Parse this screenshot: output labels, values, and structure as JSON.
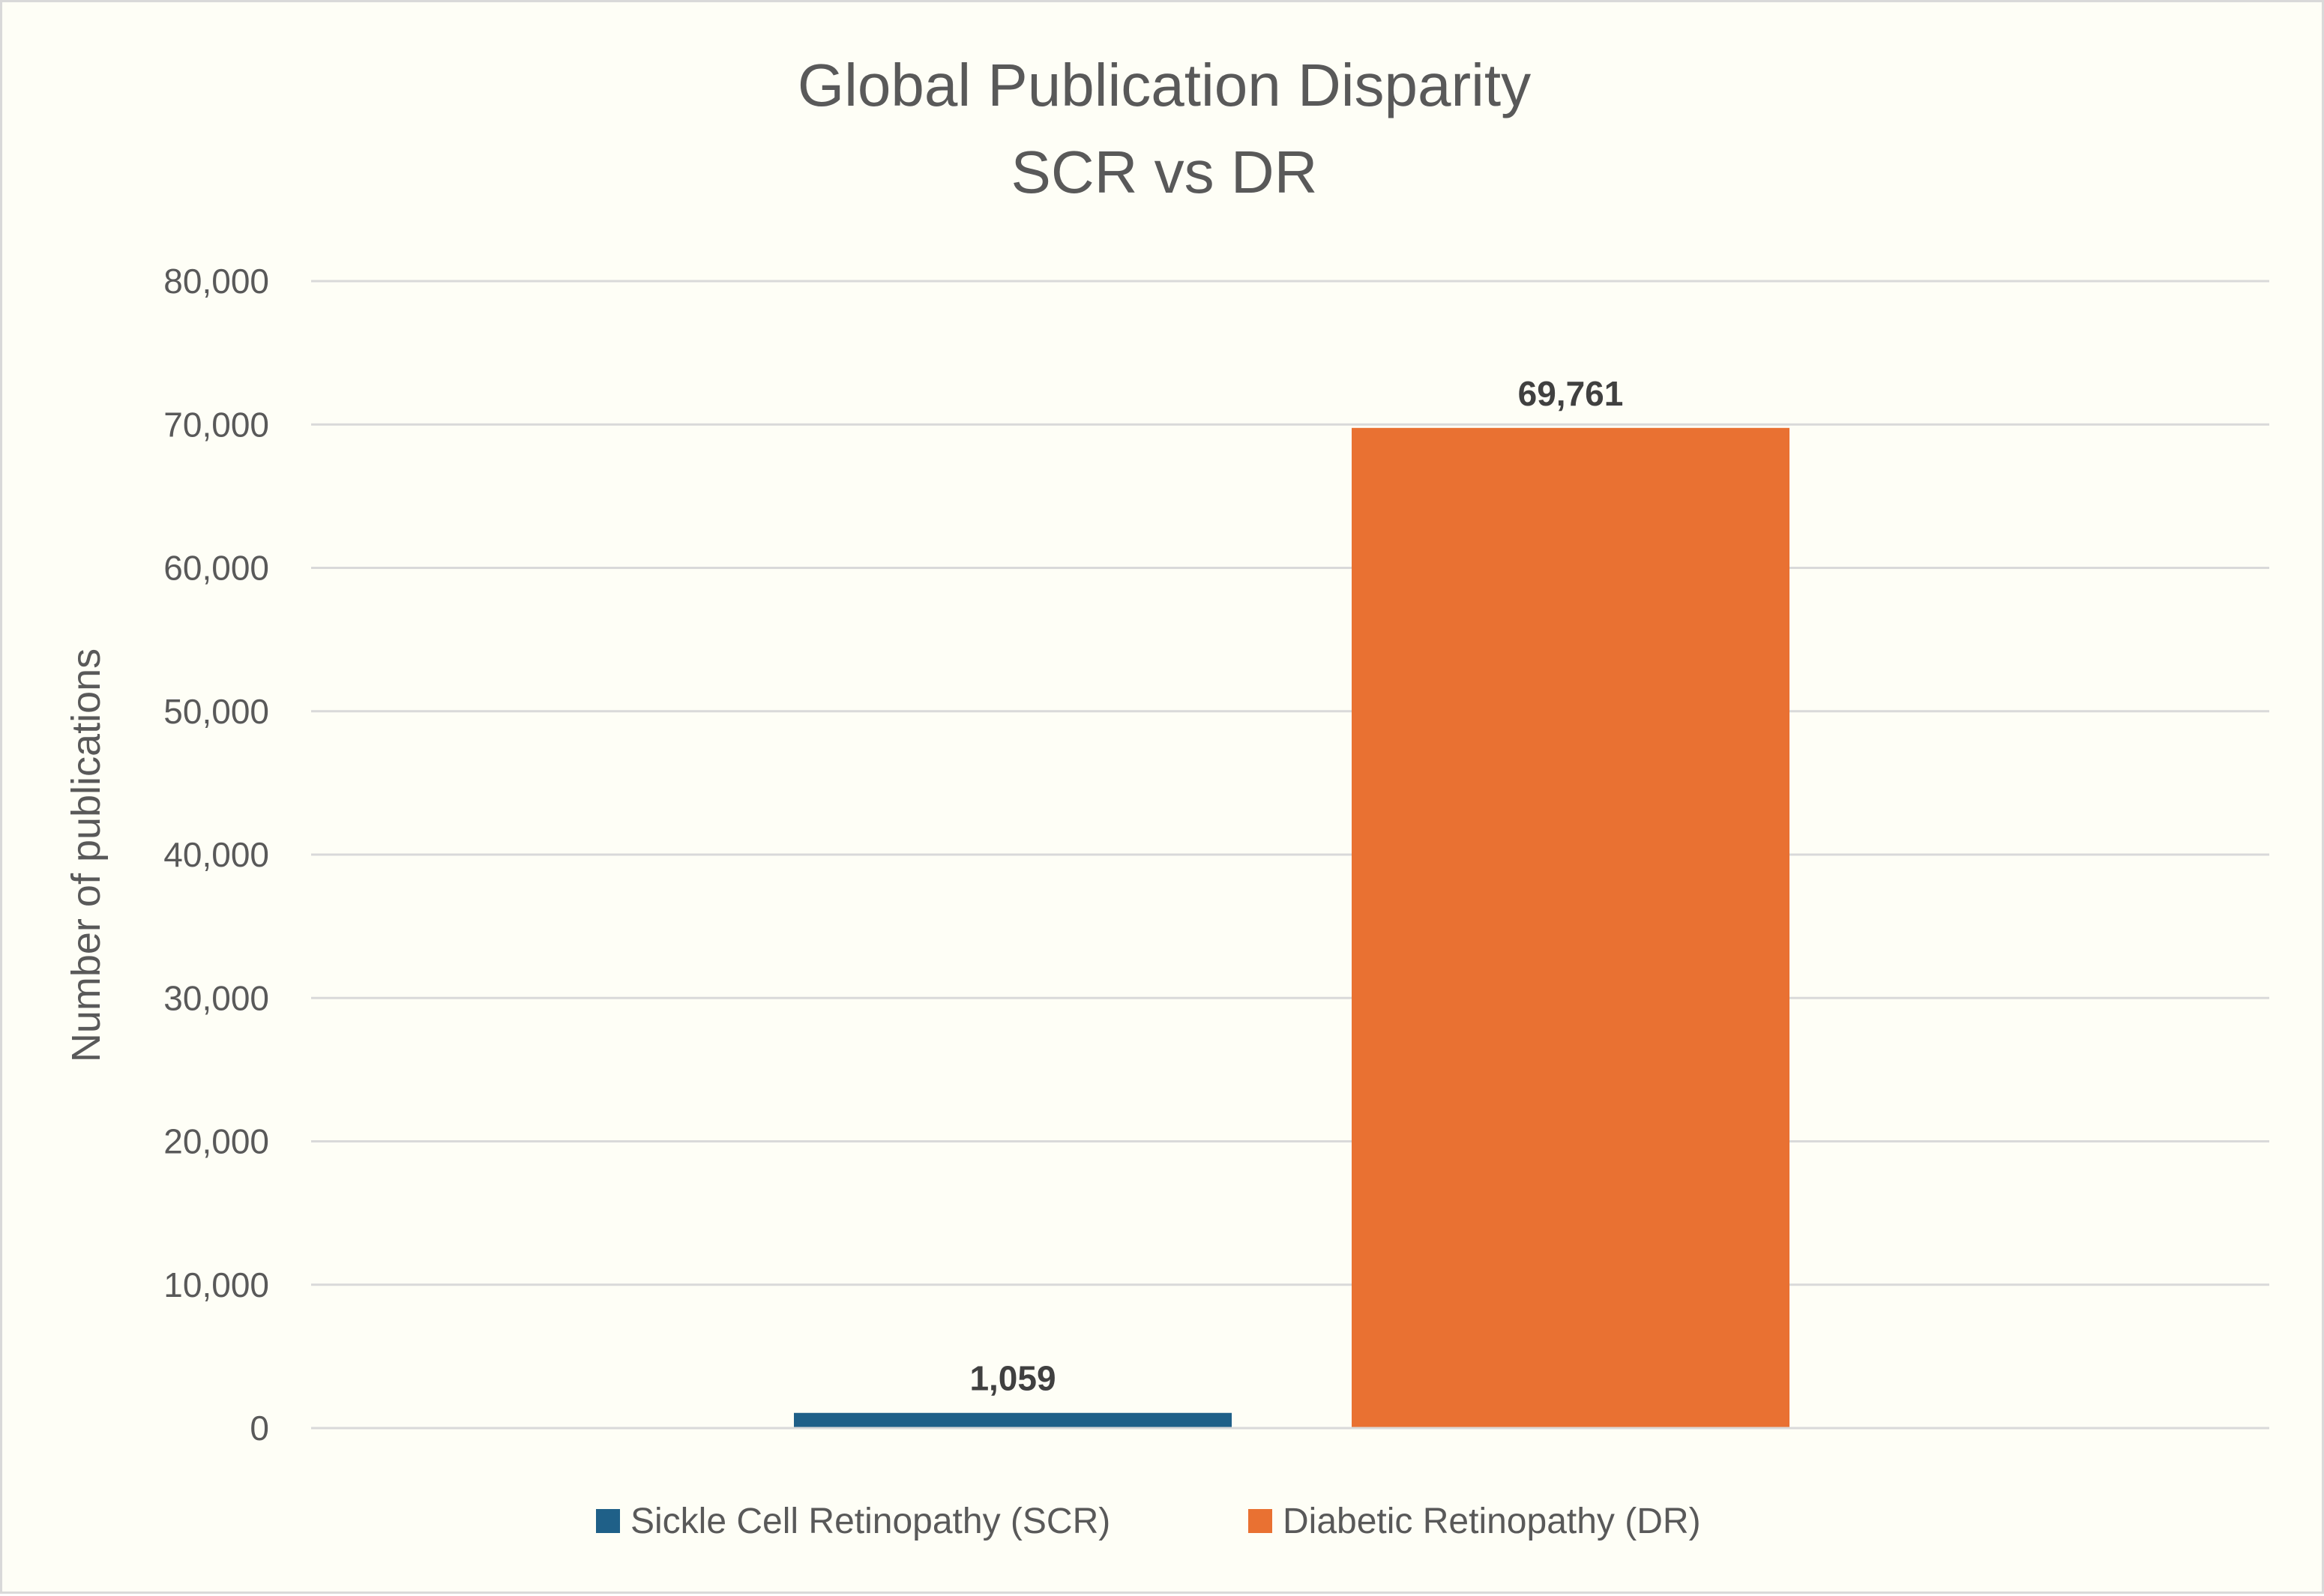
{
  "chart_data": {
    "type": "bar",
    "title": "Global Publication Disparity",
    "subtitle": "SCR vs DR",
    "xlabel": "",
    "ylabel": "Number of publications",
    "ylim": [
      0,
      80000
    ],
    "yticks": [
      0,
      10000,
      20000,
      30000,
      40000,
      50000,
      60000,
      70000,
      80000
    ],
    "ytick_labels": [
      "0",
      "10,000",
      "20,000",
      "30,000",
      "40,000",
      "50,000",
      "60,000",
      "70,000",
      "80,000"
    ],
    "grid": true,
    "legend_position": "bottom",
    "series": [
      {
        "name": "Sickle Cell Retinopathy (SCR)",
        "value": 1059,
        "label": "1,059",
        "color": "#1f6088"
      },
      {
        "name": "Diabetic Retinopathy (DR)",
        "value": 69761,
        "label": "69,761",
        "color": "#e97132"
      }
    ]
  }
}
